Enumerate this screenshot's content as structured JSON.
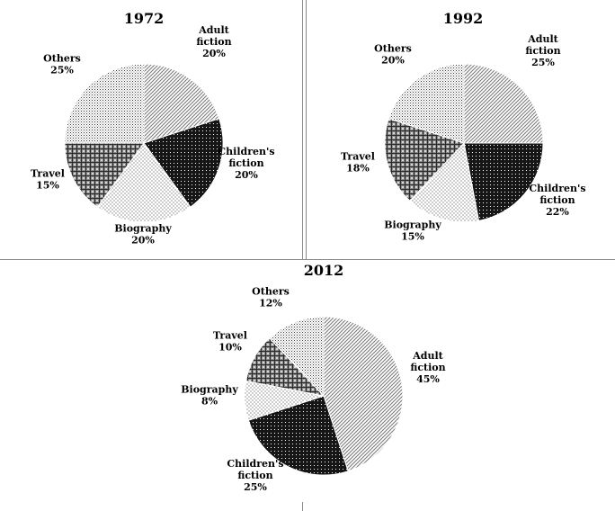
{
  "chart_data": [
    {
      "type": "pie",
      "title": "1972",
      "slices": [
        {
          "label": "Adult fiction",
          "value": 20,
          "pct": "20%",
          "pattern": "diag-light"
        },
        {
          "label": "Children's fiction",
          "value": 20,
          "pct": "20%",
          "pattern": "dark-cross"
        },
        {
          "label": "Biography",
          "value": 20,
          "pct": "20%",
          "pattern": "sparse-dots"
        },
        {
          "label": "Travel",
          "value": 15,
          "pct": "15%",
          "pattern": "grid"
        },
        {
          "label": "Others",
          "value": 25,
          "pct": "25%",
          "pattern": "fine-dots"
        }
      ]
    },
    {
      "type": "pie",
      "title": "1992",
      "slices": [
        {
          "label": "Adult fiction",
          "value": 25,
          "pct": "25%",
          "pattern": "diag-light"
        },
        {
          "label": "Children's fiction",
          "value": 22,
          "pct": "22%",
          "pattern": "dark-cross"
        },
        {
          "label": "Biography",
          "value": 15,
          "pct": "15%",
          "pattern": "sparse-dots"
        },
        {
          "label": "Travel",
          "value": 18,
          "pct": "18%",
          "pattern": "grid"
        },
        {
          "label": "Others",
          "value": 20,
          "pct": "20%",
          "pattern": "fine-dots"
        }
      ]
    },
    {
      "type": "pie",
      "title": "2012",
      "slices": [
        {
          "label": "Adult fiction",
          "value": 45,
          "pct": "45%",
          "pattern": "diag-light"
        },
        {
          "label": "Children's fiction",
          "value": 25,
          "pct": "25%",
          "pattern": "dark-cross"
        },
        {
          "label": "Biography",
          "value": 8,
          "pct": "8%",
          "pattern": "sparse-dots"
        },
        {
          "label": "Travel",
          "value": 10,
          "pct": "10%",
          "pattern": "grid"
        },
        {
          "label": "Others",
          "value": 12,
          "pct": "12%",
          "pattern": "fine-dots"
        }
      ]
    }
  ],
  "colors": {
    "background": "#ffffff",
    "ink": "#000000",
    "divider": "#8a8a8a"
  }
}
